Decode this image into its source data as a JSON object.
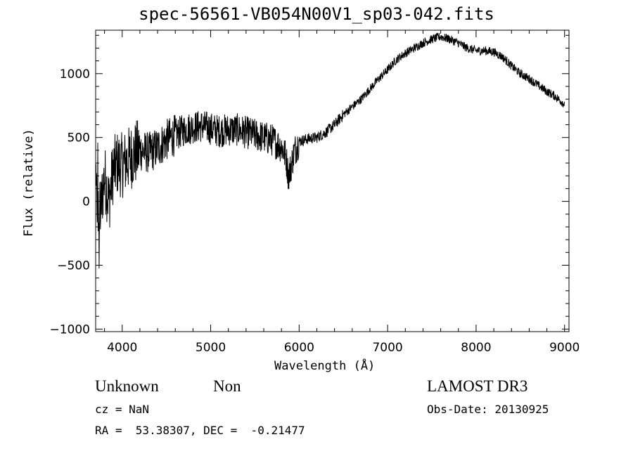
{
  "chart_data": {
    "type": "line",
    "title": "spec-56561-VB054N00V1_sp03-042.fits",
    "xlabel": "Wavelength (Å)",
    "ylabel": "Flux (relative)",
    "xlim": [
      3700,
      9050
    ],
    "ylim": [
      -1020,
      1340
    ],
    "xticks": [
      4000,
      5000,
      6000,
      7000,
      8000,
      9000
    ],
    "yticks": [
      -1000,
      -500,
      0,
      500,
      1000
    ],
    "xtick_labels": [
      "4000",
      "5000",
      "6000",
      "7000",
      "8000",
      "9000"
    ],
    "ytick_labels": [
      "−1000",
      "−500",
      "0",
      "500",
      "1000"
    ],
    "grid": false,
    "series": [
      {
        "x": [
          3700,
          3750,
          3800,
          3850,
          3900,
          3950,
          4000,
          4100,
          4200,
          4300,
          4400,
          4500,
          4600,
          4700,
          4800,
          4900,
          5000,
          5100,
          5200,
          5300,
          5400,
          5500,
          5600,
          5700,
          5750,
          5800,
          5850,
          5880,
          5900,
          5950,
          6000,
          6100,
          6200,
          6300,
          6400,
          6500,
          6600,
          6700,
          6800,
          6900,
          7000,
          7100,
          7200,
          7300,
          7400,
          7500,
          7600,
          7700,
          7800,
          7900,
          8000,
          8100,
          8200,
          8300,
          8400,
          8500,
          8600,
          8700,
          8800,
          8900,
          8950,
          9000
        ],
        "y": [
          50,
          -100,
          200,
          0,
          250,
          300,
          280,
          350,
          400,
          380,
          420,
          480,
          520,
          560,
          580,
          590,
          570,
          550,
          560,
          560,
          540,
          520,
          500,
          480,
          450,
          430,
          350,
          200,
          250,
          400,
          470,
          490,
          500,
          540,
          600,
          680,
          740,
          800,
          880,
          960,
          1030,
          1110,
          1160,
          1200,
          1240,
          1270,
          1290,
          1270,
          1240,
          1200,
          1180,
          1180,
          1170,
          1130,
          1060,
          1000,
          960,
          910,
          860,
          820,
          790,
          760
        ]
      }
    ]
  },
  "footer": {
    "object_class": "Unknown",
    "object_subclass": "Non",
    "survey": "LAMOST DR3",
    "redshift": "cz = NaN",
    "obs_date": "Obs-Date: 20130925",
    "coords": "RA =  53.38307, DEC =  -0.21477"
  }
}
